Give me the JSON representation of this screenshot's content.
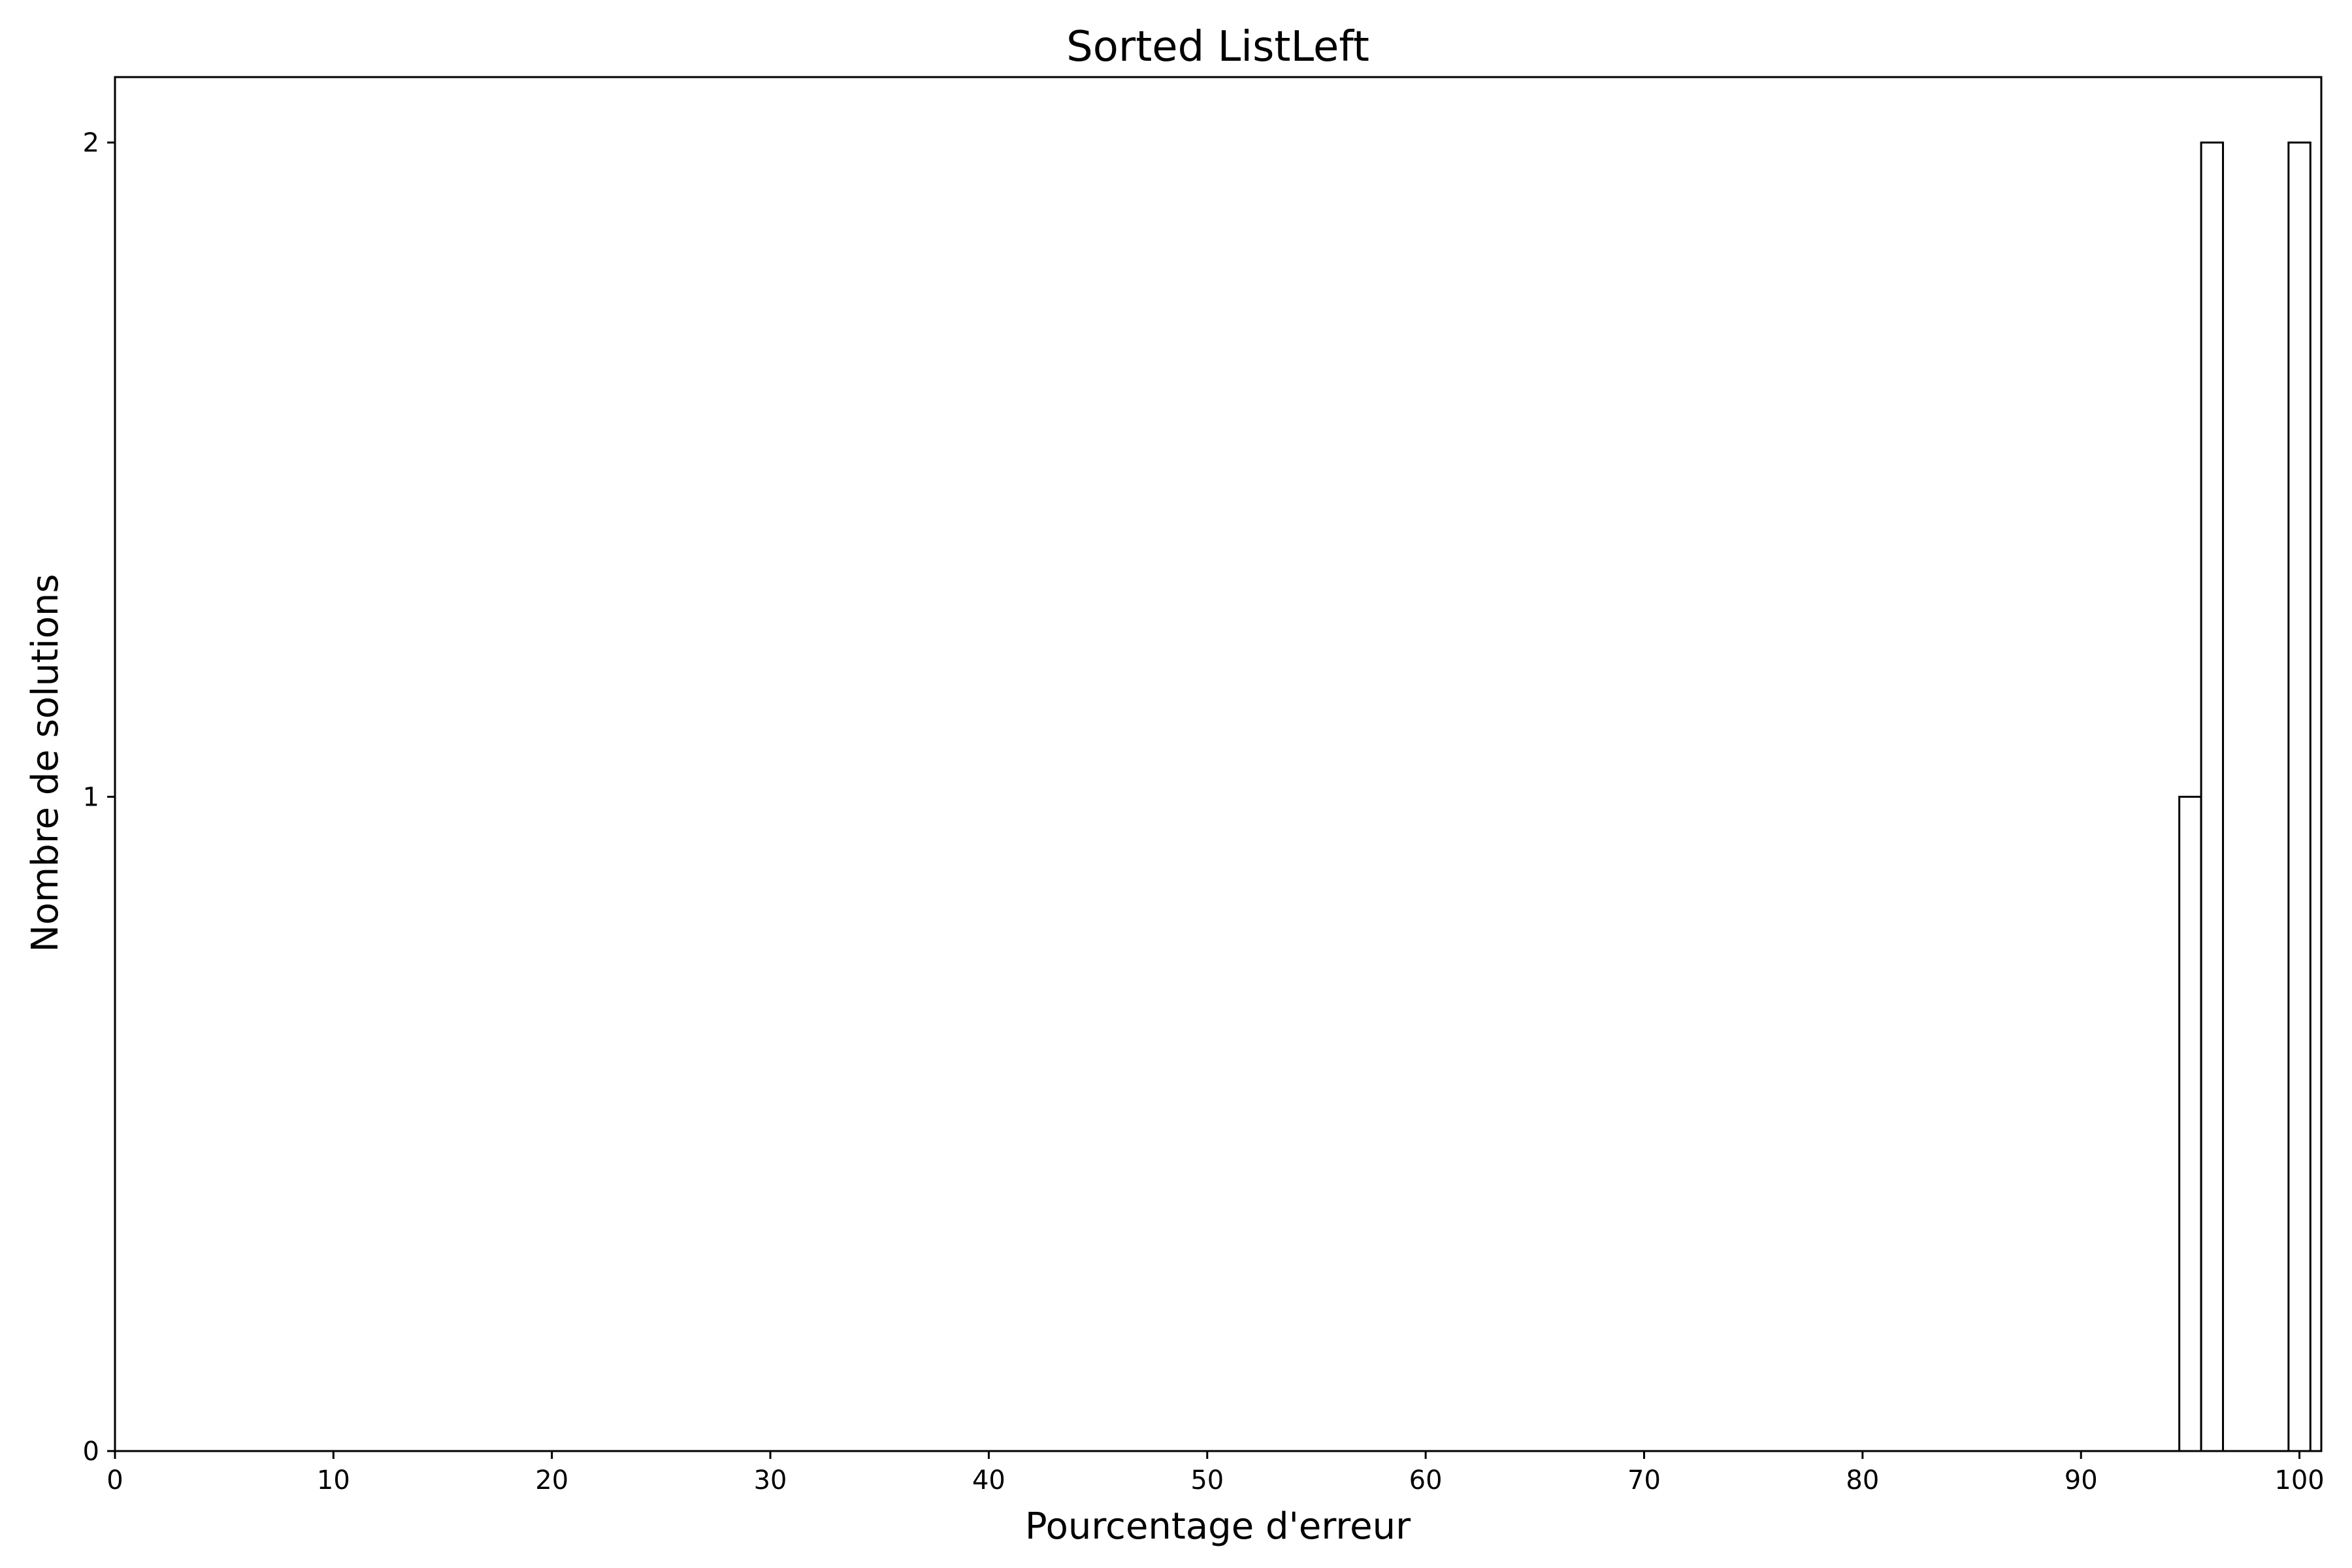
{
  "chart_data": {
    "type": "bar",
    "title": "Sorted ListLeft",
    "xlabel": "Pourcentage d'erreur",
    "ylabel": "Nombre de solutions",
    "xlim": [
      0,
      101
    ],
    "ylim": [
      0,
      2.1
    ],
    "xticks": [
      0,
      10,
      20,
      30,
      40,
      50,
      60,
      70,
      80,
      90,
      100
    ],
    "yticks": [
      0,
      1,
      2
    ],
    "grid": false,
    "legend": "none",
    "bar_fill": "#ffffff",
    "bar_edge": "#000000",
    "bar_width": 1,
    "bars": [
      {
        "x": 95,
        "value": 1
      },
      {
        "x": 96,
        "value": 2
      },
      {
        "x": 100,
        "value": 2
      }
    ]
  }
}
